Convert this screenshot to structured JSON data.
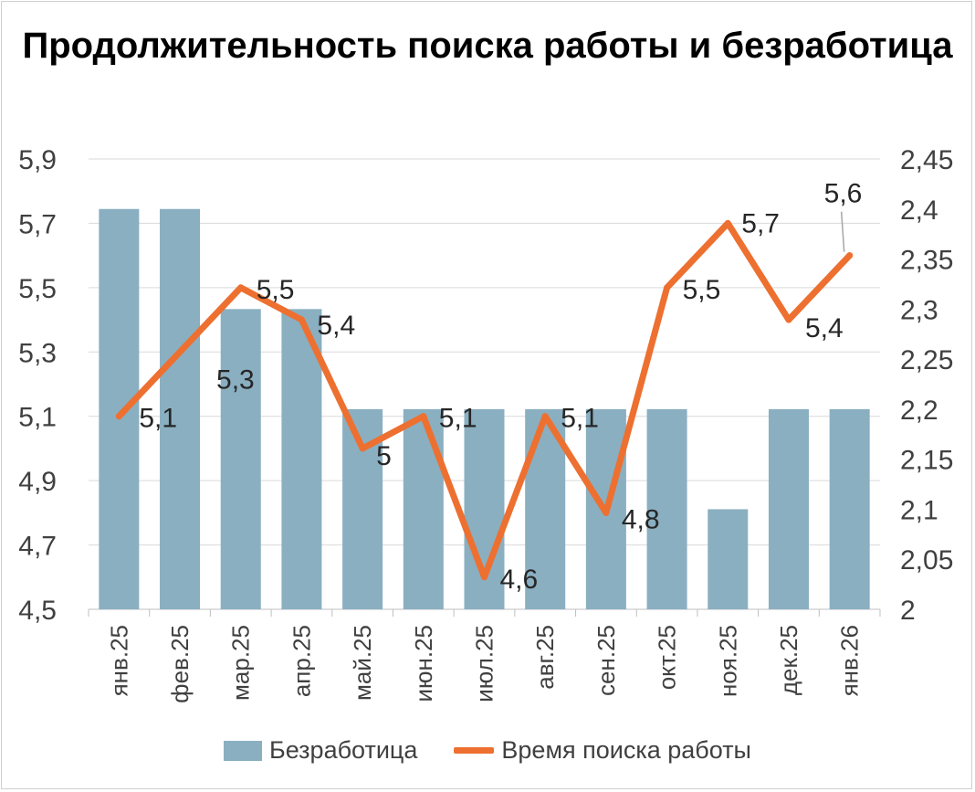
{
  "chart_data": {
    "type": "bar+line",
    "title": "Продолжительность поиска работы и безработица",
    "categories": [
      "янв.25",
      "фев.25",
      "мар.25",
      "апр.25",
      "май.25",
      "июн.25",
      "июл.25",
      "авг.25",
      "сен.25",
      "окт.25",
      "ноя.25",
      "дек.25",
      "янв.26"
    ],
    "series": [
      {
        "name": "Безработица",
        "type": "bar",
        "axis": "right",
        "color": "#8aafc1",
        "values": [
          2.4,
          2.4,
          2.3,
          2.3,
          2.2,
          2.2,
          2.2,
          2.2,
          2.2,
          2.2,
          2.1,
          2.2,
          2.2
        ]
      },
      {
        "name": "Время поиска работы",
        "type": "line",
        "axis": "left",
        "color": "#ed7031",
        "values": [
          5.1,
          5.3,
          5.5,
          5.4,
          5.0,
          5.1,
          4.6,
          5.1,
          4.8,
          5.5,
          5.7,
          5.4,
          5.6
        ],
        "data_labels": [
          "5,1",
          "5,3",
          "5,5",
          "5,4",
          "5",
          "5,1",
          "4,6",
          "5,1",
          "4,8",
          "5,5",
          "5,7",
          "5,4",
          "5,6"
        ]
      }
    ],
    "y_left": {
      "min": 4.5,
      "max": 5.9,
      "ticks": [
        "4,5",
        "4,7",
        "4,9",
        "5,1",
        "5,3",
        "5,5",
        "5,7",
        "5,9"
      ]
    },
    "y_right": {
      "min": 2.0,
      "max": 2.45,
      "ticks": [
        "2",
        "2,05",
        "2,1",
        "2,15",
        "2,2",
        "2,25",
        "2,3",
        "2,35",
        "2,4",
        "2,45"
      ]
    },
    "grid": true,
    "legend_position": "bottom"
  }
}
